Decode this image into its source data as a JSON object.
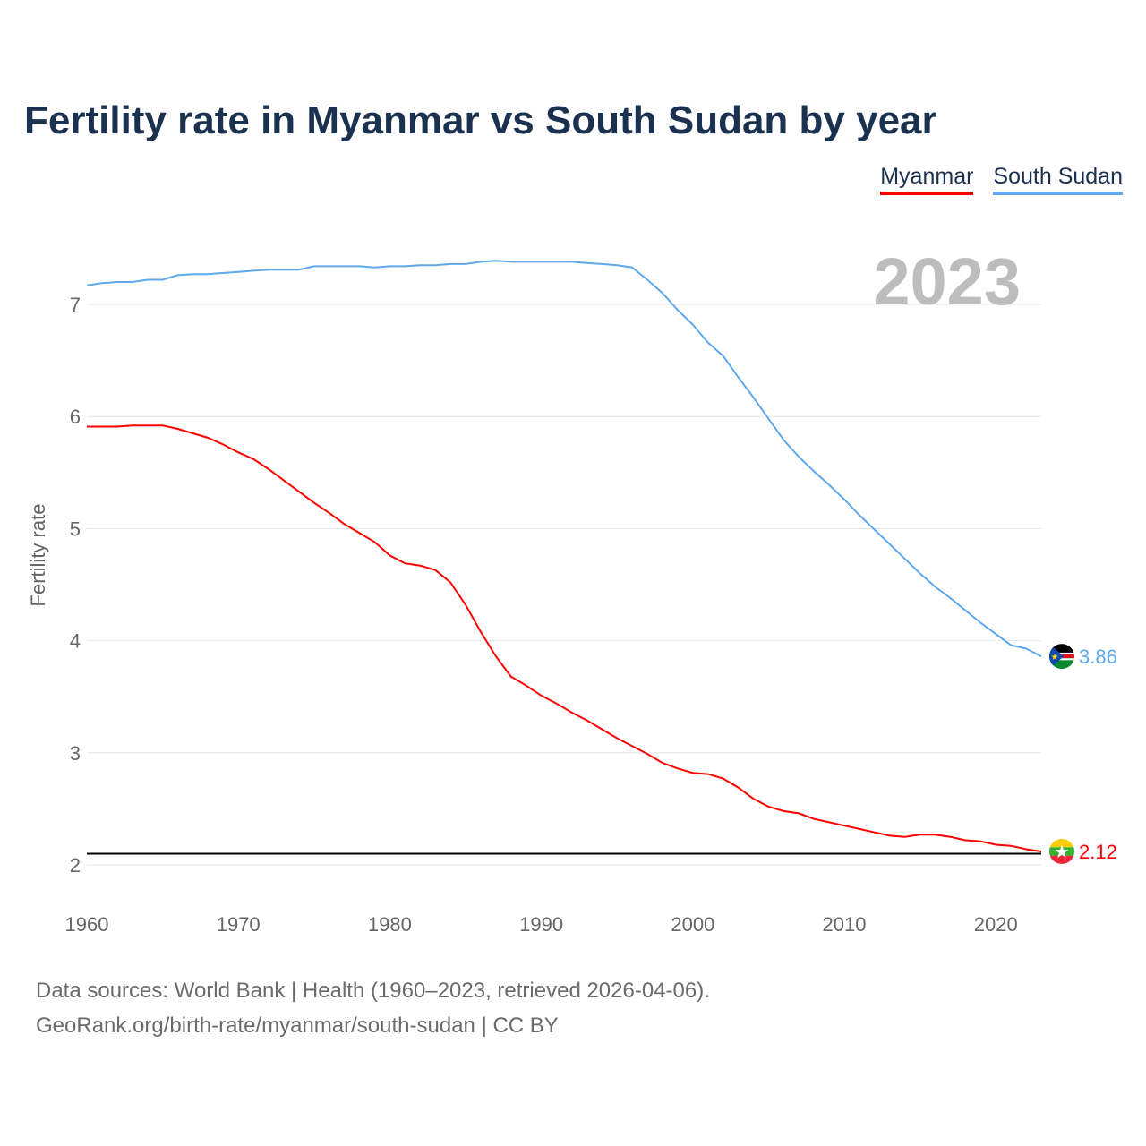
{
  "title": "Fertility rate in Myanmar vs South Sudan by year",
  "footer": {
    "line1": "Data sources: World Bank | Health (1960–2023, retrieved 2026-04-06).",
    "line2": "GeoRank.org/birth-rate/myanmar/south-sudan | CC BY"
  },
  "chart_data": {
    "type": "line",
    "title": "Fertility rate in Myanmar vs South Sudan by year",
    "xlabel": "",
    "ylabel": "Fertility rate",
    "xlim": [
      1960,
      2023
    ],
    "ylim": [
      2,
      7
    ],
    "xticks": [
      1960,
      1970,
      1980,
      1990,
      2000,
      2010,
      2020
    ],
    "yticks": [
      2,
      3,
      4,
      5,
      6,
      7
    ],
    "grid": true,
    "legend": "top-right",
    "year_label": "2023",
    "reference_line": 2.1,
    "series": [
      {
        "name": "Myanmar",
        "color": "#ff0000",
        "end_label": "2.12",
        "x": [
          1960,
          1961,
          1962,
          1963,
          1964,
          1965,
          1966,
          1967,
          1968,
          1969,
          1970,
          1971,
          1972,
          1973,
          1974,
          1975,
          1976,
          1977,
          1978,
          1979,
          1980,
          1981,
          1982,
          1983,
          1984,
          1985,
          1986,
          1987,
          1988,
          1989,
          1990,
          1991,
          1992,
          1993,
          1994,
          1995,
          1996,
          1997,
          1998,
          1999,
          2000,
          2001,
          2002,
          2003,
          2004,
          2005,
          2006,
          2007,
          2008,
          2009,
          2010,
          2011,
          2012,
          2013,
          2014,
          2015,
          2016,
          2017,
          2018,
          2019,
          2020,
          2021,
          2022,
          2023
        ],
        "values": [
          5.91,
          5.91,
          5.91,
          5.92,
          5.92,
          5.92,
          5.89,
          5.85,
          5.81,
          5.75,
          5.68,
          5.62,
          5.53,
          5.43,
          5.33,
          5.23,
          5.14,
          5.04,
          4.96,
          4.88,
          4.76,
          4.69,
          4.67,
          4.63,
          4.52,
          4.32,
          4.08,
          3.86,
          3.68,
          3.6,
          3.51,
          3.44,
          3.36,
          3.29,
          3.21,
          3.13,
          3.06,
          2.99,
          2.91,
          2.86,
          2.82,
          2.81,
          2.77,
          2.69,
          2.59,
          2.52,
          2.48,
          2.46,
          2.41,
          2.38,
          2.35,
          2.32,
          2.29,
          2.26,
          2.25,
          2.27,
          2.27,
          2.25,
          2.22,
          2.21,
          2.18,
          2.17,
          2.14,
          2.12
        ]
      },
      {
        "name": "South Sudan",
        "color": "#5fa8ee",
        "end_label": "3.86",
        "x": [
          1960,
          1961,
          1962,
          1963,
          1964,
          1965,
          1966,
          1967,
          1968,
          1969,
          1970,
          1971,
          1972,
          1973,
          1974,
          1975,
          1976,
          1977,
          1978,
          1979,
          1980,
          1981,
          1982,
          1983,
          1984,
          1985,
          1986,
          1987,
          1988,
          1989,
          1990,
          1991,
          1992,
          1993,
          1994,
          1995,
          1996,
          1997,
          1998,
          1999,
          2000,
          2001,
          2002,
          2003,
          2004,
          2005,
          2006,
          2007,
          2008,
          2009,
          2010,
          2011,
          2012,
          2013,
          2014,
          2015,
          2016,
          2017,
          2018,
          2019,
          2020,
          2021,
          2022,
          2023
        ],
        "values": [
          7.17,
          7.19,
          7.2,
          7.2,
          7.22,
          7.22,
          7.26,
          7.27,
          7.27,
          7.28,
          7.29,
          7.3,
          7.31,
          7.31,
          7.31,
          7.34,
          7.34,
          7.34,
          7.34,
          7.33,
          7.34,
          7.34,
          7.35,
          7.35,
          7.36,
          7.36,
          7.38,
          7.39,
          7.38,
          7.38,
          7.38,
          7.38,
          7.38,
          7.37,
          7.36,
          7.35,
          7.33,
          7.22,
          7.1,
          6.95,
          6.82,
          6.66,
          6.54,
          6.35,
          6.17,
          5.98,
          5.79,
          5.64,
          5.51,
          5.39,
          5.26,
          5.12,
          4.99,
          4.86,
          4.73,
          4.6,
          4.48,
          4.38,
          4.27,
          4.16,
          4.06,
          3.96,
          3.93,
          3.86
        ]
      }
    ]
  }
}
